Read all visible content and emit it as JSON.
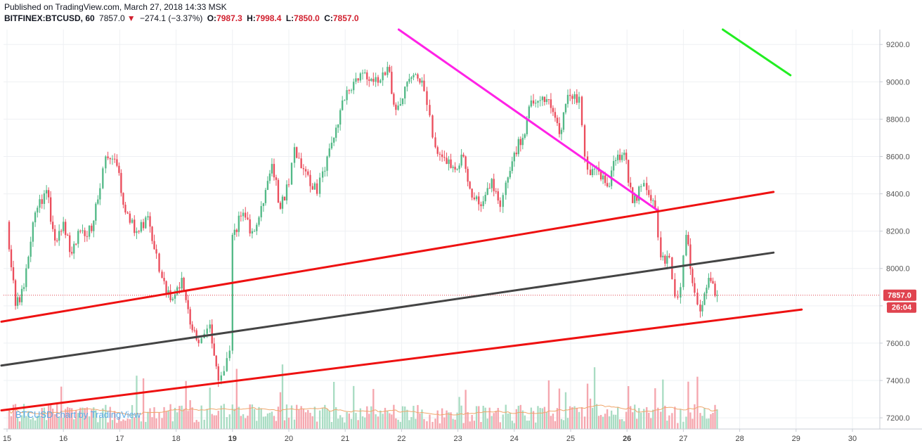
{
  "header": {
    "published": "Published on TradingView.com, March 27, 2018 14:33 MSK",
    "symbol": "BITFINEX:BTCUSD, 60",
    "last": "7857.0",
    "change_arrow": "▼",
    "change": "−274.1 (−3.37%)",
    "o_label": "O:",
    "o_value": "7987.3",
    "h_label": "H:",
    "h_value": "7998.4",
    "l_label": "L:",
    "l_value": "7850.0",
    "c_label": "C:",
    "c_value": "7857.0"
  },
  "watermark": "BTCUSD chart by TradingView",
  "price_tag": "7857.0",
  "countdown_tag": "26:04",
  "colors": {
    "up": "#53b987",
    "down": "#eb4d5c",
    "up_vol": "#a9dcc3",
    "down_vol": "#f5a6ae",
    "tag": "#e0434f"
  },
  "chart_data": {
    "type": "candlestick",
    "x_ticks": [
      "15",
      "16",
      "17",
      "18",
      "19",
      "20",
      "21",
      "22",
      "23",
      "24",
      "25",
      "26",
      "27",
      "28",
      "29",
      "30"
    ],
    "y_ticks": [
      "7200.0",
      "7400.0",
      "7600.0",
      "7800.0",
      "8000.0",
      "8200.0",
      "8400.0",
      "8600.0",
      "8800.0",
      "9000.0",
      "9200.0"
    ],
    "ylim": [
      7140,
      9280
    ],
    "last_price": 7857.0,
    "anchors": [
      [
        15.0,
        8250
      ],
      [
        15.15,
        7800
      ],
      [
        15.3,
        7900
      ],
      [
        15.5,
        8300
      ],
      [
        15.7,
        8420
      ],
      [
        15.85,
        8150
      ],
      [
        16.0,
        8250
      ],
      [
        16.15,
        8080
      ],
      [
        16.3,
        8200
      ],
      [
        16.5,
        8200
      ],
      [
        16.65,
        8430
      ],
      [
        16.75,
        8600
      ],
      [
        16.95,
        8550
      ],
      [
        17.1,
        8300
      ],
      [
        17.3,
        8200
      ],
      [
        17.5,
        8280
      ],
      [
        17.65,
        8080
      ],
      [
        17.75,
        7950
      ],
      [
        17.9,
        7830
      ],
      [
        18.1,
        7950
      ],
      [
        18.25,
        7700
      ],
      [
        18.4,
        7600
      ],
      [
        18.5,
        7650
      ],
      [
        18.6,
        7700
      ],
      [
        18.75,
        7400
      ],
      [
        18.85,
        7450
      ],
      [
        18.95,
        7560
      ],
      [
        19.0,
        8180
      ],
      [
        19.15,
        8280
      ],
      [
        19.35,
        8200
      ],
      [
        19.55,
        8350
      ],
      [
        19.7,
        8560
      ],
      [
        19.85,
        8320
      ],
      [
        20.0,
        8450
      ],
      [
        20.1,
        8650
      ],
      [
        20.3,
        8520
      ],
      [
        20.5,
        8400
      ],
      [
        20.6,
        8520
      ],
      [
        20.8,
        8700
      ],
      [
        20.95,
        8900
      ],
      [
        21.15,
        9000
      ],
      [
        21.35,
        9050
      ],
      [
        21.5,
        9000
      ],
      [
        21.75,
        9080
      ],
      [
        21.9,
        8850
      ],
      [
        22.1,
        9000
      ],
      [
        22.25,
        9040
      ],
      [
        22.4,
        8950
      ],
      [
        22.5,
        8820
      ],
      [
        22.6,
        8650
      ],
      [
        22.8,
        8560
      ],
      [
        22.95,
        8530
      ],
      [
        23.1,
        8600
      ],
      [
        23.25,
        8380
      ],
      [
        23.45,
        8360
      ],
      [
        23.6,
        8480
      ],
      [
        23.75,
        8330
      ],
      [
        23.85,
        8460
      ],
      [
        24.0,
        8620
      ],
      [
        24.15,
        8700
      ],
      [
        24.3,
        8900
      ],
      [
        24.5,
        8920
      ],
      [
        24.65,
        8860
      ],
      [
        24.8,
        8720
      ],
      [
        24.95,
        8930
      ],
      [
        25.15,
        8920
      ],
      [
        25.25,
        8600
      ],
      [
        25.35,
        8500
      ],
      [
        25.5,
        8520
      ],
      [
        25.65,
        8440
      ],
      [
        25.8,
        8580
      ],
      [
        25.95,
        8620
      ],
      [
        26.1,
        8350
      ],
      [
        26.25,
        8440
      ],
      [
        26.35,
        8420
      ],
      [
        26.5,
        8320
      ],
      [
        26.6,
        8060
      ],
      [
        26.75,
        8060
      ],
      [
        26.85,
        7850
      ],
      [
        26.95,
        7900
      ],
      [
        27.05,
        8180
      ],
      [
        27.2,
        7870
      ],
      [
        27.3,
        7770
      ],
      [
        27.45,
        7950
      ],
      [
        27.6,
        7857
      ]
    ],
    "trend_lines": [
      {
        "color": "#ff22e6",
        "from": [
          21.95,
          9280
        ],
        "to": [
          26.55,
          8310
        ]
      },
      {
        "color": "#22ee22",
        "from": [
          27.7,
          9280
        ],
        "to": [
          28.9,
          9035
        ]
      },
      {
        "color": "#ee1111",
        "from": [
          14.9,
          7715
        ],
        "to": [
          28.6,
          8410
        ]
      },
      {
        "color": "#444444",
        "from": [
          14.9,
          7480
        ],
        "to": [
          28.6,
          8085
        ]
      },
      {
        "color": "#ee1111",
        "from": [
          14.9,
          7240
        ],
        "to": [
          29.1,
          7780
        ]
      }
    ]
  }
}
